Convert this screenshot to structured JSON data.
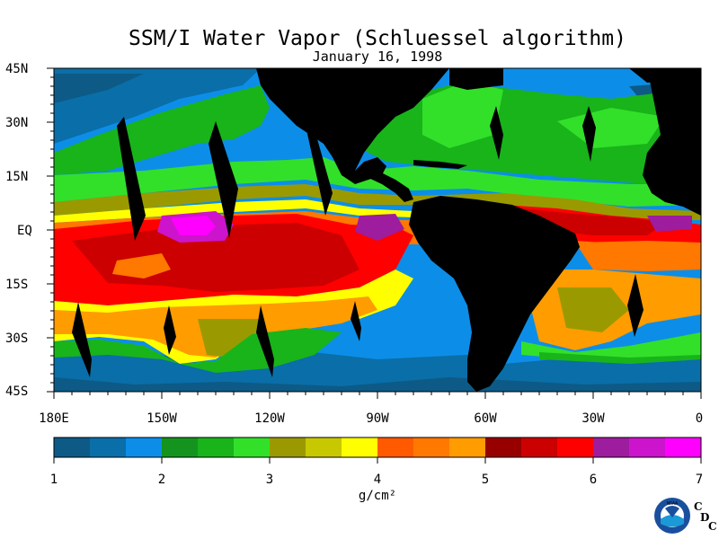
{
  "title": "SSM/I Water Vapor (Schluessel algorithm)",
  "date": "January 16, 1998",
  "map": {
    "lat_labels": [
      "45N",
      "30N",
      "15N",
      "EQ",
      "15S",
      "30S",
      "45S"
    ],
    "lon_labels": [
      "180E",
      "150W",
      "120W",
      "90W",
      "60W",
      "30W",
      "0"
    ]
  },
  "colorbar": {
    "colors": [
      "#0d5a86",
      "#0a6ea8",
      "#0c8ee8",
      "#14941e",
      "#18b41a",
      "#32e02a",
      "#9a9a00",
      "#c8c800",
      "#ffff00",
      "#ff5a00",
      "#ff7800",
      "#ff9c00",
      "#980000",
      "#cc0000",
      "#ff0000",
      "#9e1c9e",
      "#cc14cc",
      "#ff00ff"
    ],
    "tick_labels": [
      "1",
      "2",
      "3",
      "4",
      "5",
      "6",
      "7"
    ],
    "unit_label": "g/cm²"
  },
  "logo": {
    "agency_text": "NOAA",
    "letters": [
      "C",
      "D",
      "C"
    ]
  }
}
